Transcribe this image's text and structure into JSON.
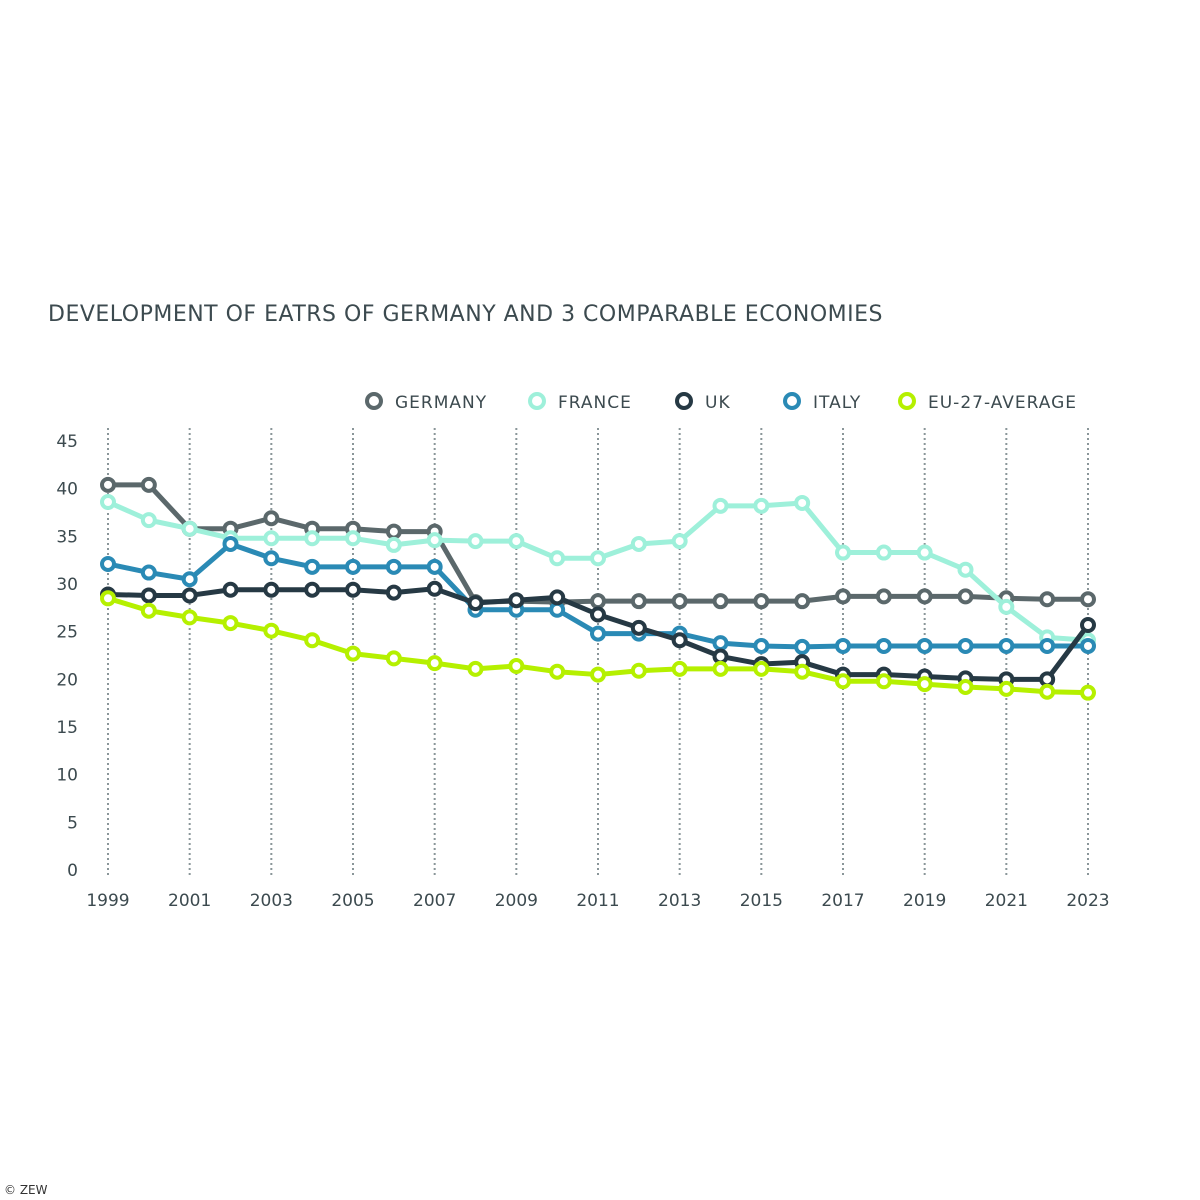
{
  "chart_data": {
    "type": "line",
    "title": "DEVELOPMENT OF EATRS OF GERMANY AND 3 COMPARABLE ECONOMIES",
    "xlabel": "",
    "ylabel": "",
    "x": [
      1999,
      2000,
      2001,
      2002,
      2003,
      2004,
      2005,
      2006,
      2007,
      2008,
      2009,
      2010,
      2011,
      2012,
      2013,
      2014,
      2015,
      2016,
      2017,
      2018,
      2019,
      2020,
      2021,
      2022,
      2023
    ],
    "x_tick_labels": [
      "1999",
      "2001",
      "2003",
      "2005",
      "2007",
      "2009",
      "2011",
      "2013",
      "2015",
      "2017",
      "2019",
      "2021",
      "2023"
    ],
    "y_tick_labels": [
      "0",
      "5",
      "10",
      "15",
      "20",
      "25",
      "30",
      "35",
      "40",
      "45"
    ],
    "ylim": [
      0,
      45
    ],
    "xlim": [
      1999,
      2023
    ],
    "grid": "vertical dotted lines at labeled years",
    "legend_position": "top-right",
    "series": [
      {
        "name": "GERMANY",
        "color": "#5b686b",
        "values": [
          40.4,
          40.4,
          35.8,
          35.8,
          36.9,
          35.8,
          35.8,
          35.5,
          35.5,
          28.1,
          28.2,
          28.1,
          28.2,
          28.2,
          28.2,
          28.2,
          28.2,
          28.2,
          28.7,
          28.7,
          28.7,
          28.7,
          28.5,
          28.4,
          28.4
        ]
      },
      {
        "name": "FRANCE",
        "color": "#9ef0da",
        "values": [
          38.6,
          36.7,
          35.8,
          34.8,
          34.8,
          34.8,
          34.8,
          34.1,
          34.6,
          34.5,
          34.5,
          32.7,
          32.7,
          34.2,
          34.5,
          38.2,
          38.2,
          38.5,
          33.3,
          33.3,
          33.3,
          31.5,
          27.6,
          24.4,
          24.1
        ]
      },
      {
        "name": "UK",
        "color": "#263944",
        "values": [
          28.9,
          28.8,
          28.8,
          29.4,
          29.4,
          29.4,
          29.4,
          29.1,
          29.5,
          28.0,
          28.3,
          28.6,
          26.8,
          25.4,
          24.1,
          22.4,
          21.6,
          21.8,
          20.5,
          20.5,
          20.3,
          20.1,
          20.0,
          20.0,
          25.7
        ]
      },
      {
        "name": "ITALY",
        "color": "#2a8ab5",
        "values": [
          32.1,
          31.2,
          30.5,
          34.2,
          32.7,
          31.8,
          31.8,
          31.8,
          31.8,
          27.3,
          27.3,
          27.3,
          24.8,
          24.8,
          24.8,
          23.8,
          23.5,
          23.4,
          23.5,
          23.5,
          23.5,
          23.5,
          23.5,
          23.5,
          23.5
        ]
      },
      {
        "name": "EU-27-AVERAGE",
        "color": "#b5f000",
        "values": [
          28.5,
          27.2,
          26.5,
          25.9,
          25.1,
          24.1,
          22.7,
          22.2,
          21.7,
          21.1,
          21.4,
          20.8,
          20.5,
          20.9,
          21.1,
          21.1,
          21.1,
          20.8,
          19.8,
          19.8,
          19.5,
          19.2,
          19.0,
          18.7,
          18.6
        ]
      }
    ]
  },
  "credit": "© ZEW"
}
